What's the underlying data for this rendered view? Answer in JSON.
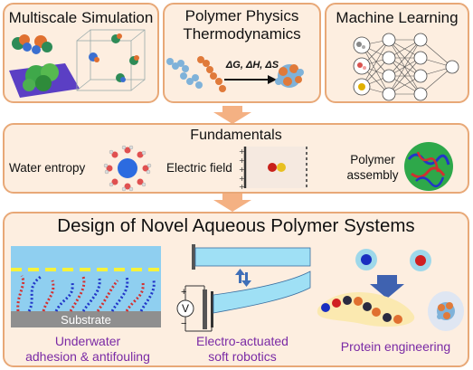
{
  "top": {
    "multiscale": {
      "title": "Multiscale Simulation"
    },
    "polymer": {
      "title_line1": "Polymer Physics",
      "title_line2": "Thermodynamics",
      "equation": "ΔG, ΔH, ΔS"
    },
    "ml": {
      "title": "Machine Learning"
    }
  },
  "fundamentals": {
    "title": "Fundamentals",
    "items": [
      {
        "label": "Water entropy"
      },
      {
        "label": "Electric field"
      },
      {
        "label_line1": "Polymer",
        "label_line2": "assembly"
      }
    ]
  },
  "design": {
    "title": "Design of Novel Aqueous Polymer Systems",
    "substrate_label": "Substrate",
    "voltage_symbol": "V",
    "plus": "+",
    "minus": "−",
    "apps": [
      {
        "line1": "Underwater",
        "line2": "adhesion & antifouling"
      },
      {
        "line1": "Electro-actuated",
        "line2": "soft robotics"
      },
      {
        "line1": "Protein engineering"
      }
    ]
  },
  "colors": {
    "panel_fill": "#fdeee0",
    "panel_border": "#e8a877",
    "arrow": "#f4b183",
    "accent_text": "#7a2aa5"
  }
}
